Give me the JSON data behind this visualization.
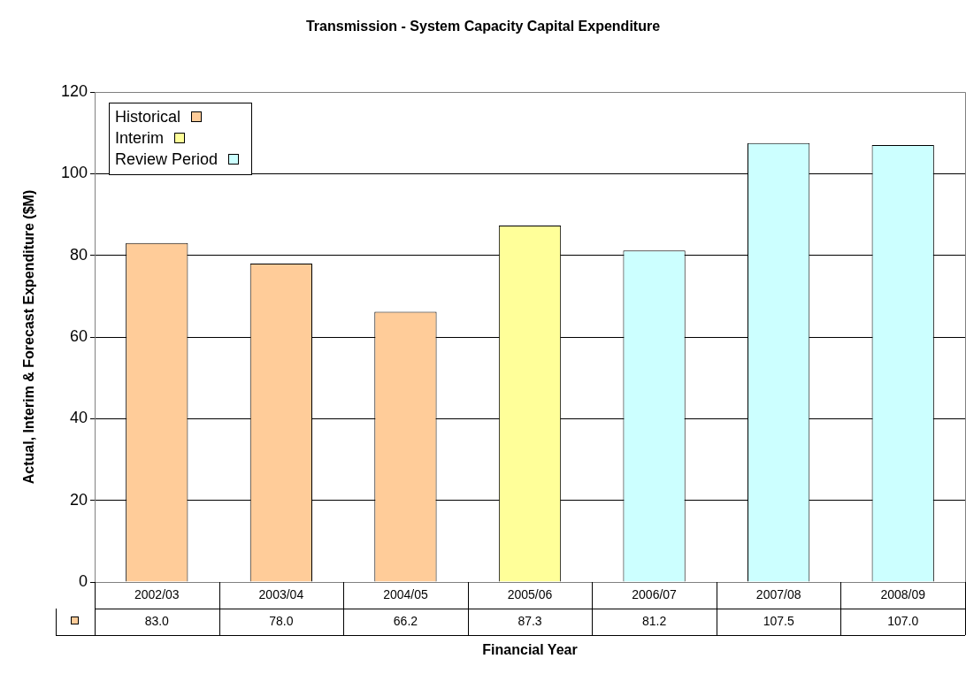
{
  "chart_data": {
    "type": "bar",
    "title": "Transmission - System Capacity Capital Expenditure",
    "xlabel": "Financial Year",
    "ylabel": "Actual, Interim & Forecast Expenditure ($M)",
    "categories": [
      "2002/03",
      "2003/04",
      "2004/05",
      "2005/06",
      "2006/07",
      "2007/08",
      "2008/09"
    ],
    "series": [
      {
        "name": "Historical",
        "color": "#ffcc99",
        "values": [
          83.0,
          78.0,
          66.2,
          null,
          null,
          null,
          null
        ],
        "value_labels": [
          "83.0",
          "78.0",
          "66.2",
          null,
          null,
          null,
          null
        ]
      },
      {
        "name": "Interim",
        "color": "#ffff99",
        "values": [
          null,
          null,
          null,
          87.3,
          null,
          null,
          null
        ],
        "value_labels": [
          null,
          null,
          null,
          "87.3",
          null,
          null,
          null
        ]
      },
      {
        "name": "Review Period",
        "color": "#ccffff",
        "values": [
          null,
          null,
          null,
          null,
          81.2,
          107.5,
          107.0
        ],
        "value_labels": [
          null,
          null,
          null,
          null,
          "81.2",
          "107.5",
          "107.0"
        ]
      }
    ],
    "ylim": [
      0,
      120
    ],
    "yticks": [
      0,
      20,
      40,
      60,
      80,
      100,
      120
    ],
    "grid": "y",
    "legend": "top left"
  }
}
